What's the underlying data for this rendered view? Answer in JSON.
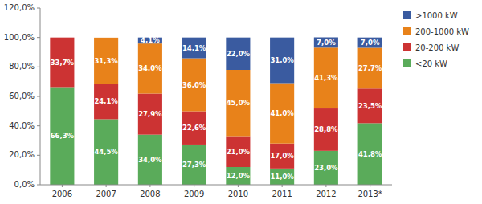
{
  "chart_data": {
    "type": "bar",
    "stacked": true,
    "categories": [
      "2006",
      "2007",
      "2008",
      "2009",
      "2010",
      "2011",
      "2012",
      "2013*"
    ],
    "series": [
      {
        "name": "<20 kW",
        "color": "#5AAB5A",
        "values": [
          66.3,
          44.5,
          34.0,
          27.3,
          12.0,
          11.0,
          23.0,
          41.8
        ],
        "value_labels": [
          "66,3%",
          "44,5%",
          "34,0%",
          "27,3%",
          "12,0%",
          "11,0%",
          "23,0%",
          "41,8%"
        ]
      },
      {
        "name": "20-200 kW",
        "color": "#CC3333",
        "values": [
          33.7,
          24.1,
          27.9,
          22.6,
          21.0,
          17.0,
          28.8,
          23.5
        ],
        "value_labels": [
          "33,7%",
          "24,1%",
          "27,9%",
          "22,6%",
          "21,0%",
          "17,0%",
          "28,8%",
          "23,5%"
        ]
      },
      {
        "name": "200-1000 kW",
        "color": "#E8821A",
        "values": [
          0.0,
          31.3,
          34.0,
          36.0,
          45.0,
          41.0,
          41.3,
          27.7
        ],
        "value_labels": [
          null,
          "31,3%",
          "34,0%",
          "36,0%",
          "45,0%",
          "41,0%",
          "41,3%",
          "27,7%"
        ]
      },
      {
        "name": ">1000 kW",
        "color": "#3A5BA0",
        "values": [
          0.0,
          0.0,
          4.1,
          14.1,
          22.0,
          31.0,
          7.0,
          7.0
        ],
        "value_labels": [
          null,
          null,
          "4,1%",
          "14,1%",
          "22,0%",
          "31,0%",
          "7,0%",
          "7,0%"
        ]
      }
    ],
    "ylim": [
      0,
      120
    ],
    "yticks": [
      {
        "value": 0,
        "label": "0,0%"
      },
      {
        "value": 20,
        "label": "20,0%"
      },
      {
        "value": 40,
        "label": "40,0%"
      },
      {
        "value": 60,
        "label": "60,0%"
      },
      {
        "value": 80,
        "label": "80,0%"
      },
      {
        "value": 100,
        "label": "100,0%"
      },
      {
        "value": 120,
        "label": "120,0%"
      }
    ],
    "grid": false,
    "legend": "right",
    "data_labels": true
  }
}
